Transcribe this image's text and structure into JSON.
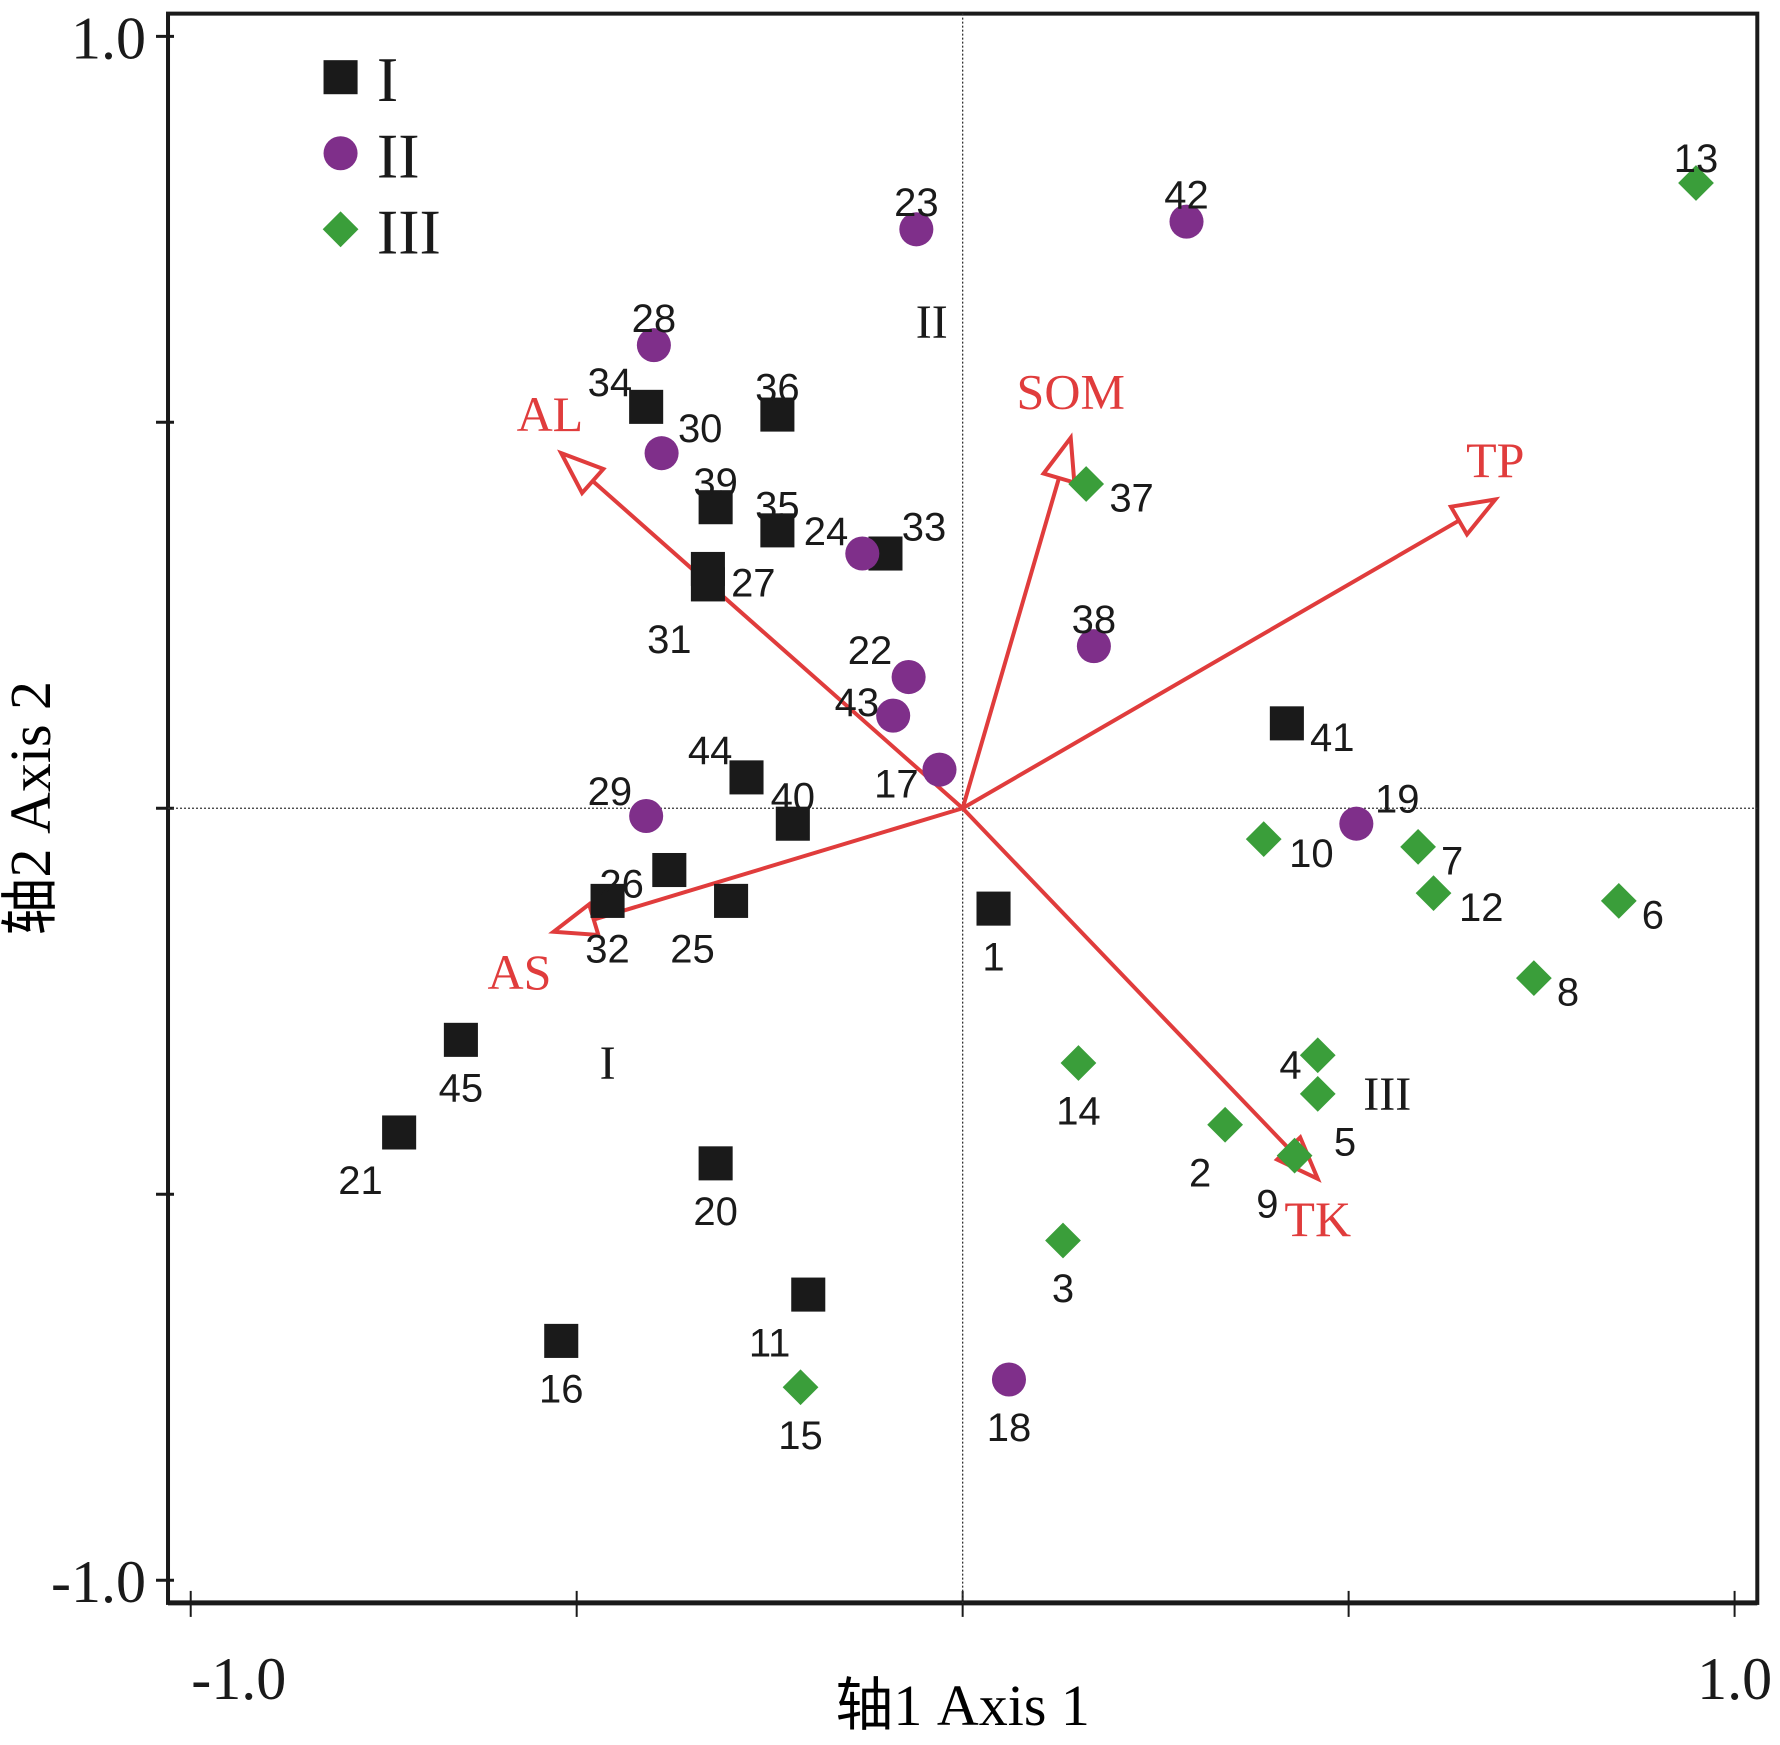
{
  "chart_data": {
    "type": "scatter",
    "title": "",
    "xlabel": "轴1 Axis 1",
    "ylabel": "轴2 Axis 2",
    "xlim": [
      -1.0,
      1.0
    ],
    "ylim": [
      -1.0,
      1.0
    ],
    "x_tick_labels": [
      "-1.0",
      "1.0"
    ],
    "y_tick_labels": [
      "1.0",
      "-1.0"
    ],
    "x_ticks": [
      -1.0,
      -0.5,
      0.0,
      0.5,
      1.0
    ],
    "y_ticks": [
      1.0,
      0.5,
      0.0,
      -0.5,
      -1.0
    ],
    "grid": false,
    "reference_lines": {
      "x": 0,
      "y": 0,
      "style": "dotted"
    },
    "legend": {
      "placement": "top-left",
      "entries": [
        {
          "name": "I",
          "marker": "square",
          "color": "#1a1a1a"
        },
        {
          "name": "II",
          "marker": "circle",
          "color": "#7f2f8a"
        },
        {
          "name": "III",
          "marker": "diamond",
          "color": "#3a9e3a"
        }
      ]
    },
    "series": [
      {
        "name": "I",
        "marker": "square",
        "color": "#1a1a1a",
        "points": [
          {
            "label": "1",
            "x": 0.04,
            "y": -0.13
          },
          {
            "label": "11",
            "x": -0.2,
            "y": -0.63
          },
          {
            "label": "16",
            "x": -0.52,
            "y": -0.69
          },
          {
            "label": "20",
            "x": -0.32,
            "y": -0.46
          },
          {
            "label": "21",
            "x": -0.73,
            "y": -0.42
          },
          {
            "label": "25",
            "x": -0.3,
            "y": -0.12
          },
          {
            "label": "26",
            "x": -0.38,
            "y": -0.08
          },
          {
            "label": "27",
            "x": -0.33,
            "y": 0.31
          },
          {
            "label": "31",
            "x": -0.33,
            "y": 0.29
          },
          {
            "label": "32",
            "x": -0.46,
            "y": -0.12
          },
          {
            "label": "33",
            "x": -0.1,
            "y": 0.33
          },
          {
            "label": "34",
            "x": -0.41,
            "y": 0.52
          },
          {
            "label": "35",
            "x": -0.24,
            "y": 0.36
          },
          {
            "label": "36",
            "x": -0.24,
            "y": 0.51
          },
          {
            "label": "39",
            "x": -0.32,
            "y": 0.39
          },
          {
            "label": "40",
            "x": -0.22,
            "y": -0.02
          },
          {
            "label": "41",
            "x": 0.42,
            "y": 0.11
          },
          {
            "label": "44",
            "x": -0.28,
            "y": 0.04
          },
          {
            "label": "45",
            "x": -0.65,
            "y": -0.3
          }
        ]
      },
      {
        "name": "II",
        "marker": "circle",
        "color": "#7f2f8a",
        "points": [
          {
            "label": "17",
            "x": -0.03,
            "y": 0.05
          },
          {
            "label": "18",
            "x": 0.06,
            "y": -0.74
          },
          {
            "label": "19",
            "x": 0.51,
            "y": -0.02
          },
          {
            "label": "22",
            "x": -0.07,
            "y": 0.17
          },
          {
            "label": "23",
            "x": -0.06,
            "y": 0.75
          },
          {
            "label": "24",
            "x": -0.13,
            "y": 0.33
          },
          {
            "label": "28",
            "x": -0.4,
            "y": 0.6
          },
          {
            "label": "29",
            "x": -0.41,
            "y": -0.01
          },
          {
            "label": "30",
            "x": -0.39,
            "y": 0.46
          },
          {
            "label": "38",
            "x": 0.17,
            "y": 0.21
          },
          {
            "label": "42",
            "x": 0.29,
            "y": 0.76
          },
          {
            "label": "43",
            "x": -0.09,
            "y": 0.12
          }
        ]
      },
      {
        "name": "III",
        "marker": "diamond",
        "color": "#3a9e3a",
        "points": [
          {
            "label": "2",
            "x": 0.34,
            "y": -0.41
          },
          {
            "label": "3",
            "x": 0.13,
            "y": -0.56
          },
          {
            "label": "4",
            "x": 0.46,
            "y": -0.32
          },
          {
            "label": "5",
            "x": 0.46,
            "y": -0.37
          },
          {
            "label": "6",
            "x": 0.85,
            "y": -0.12
          },
          {
            "label": "7",
            "x": 0.59,
            "y": -0.05
          },
          {
            "label": "8",
            "x": 0.74,
            "y": -0.22
          },
          {
            "label": "9",
            "x": 0.43,
            "y": -0.45
          },
          {
            "label": "10",
            "x": 0.39,
            "y": -0.04
          },
          {
            "label": "12",
            "x": 0.61,
            "y": -0.11
          },
          {
            "label": "13",
            "x": 0.95,
            "y": 0.81
          },
          {
            "label": "14",
            "x": 0.15,
            "y": -0.33
          },
          {
            "label": "15",
            "x": -0.21,
            "y": -0.75
          },
          {
            "label": "37",
            "x": 0.16,
            "y": 0.42
          }
        ]
      }
    ],
    "vectors": {
      "color": "#e03c3c",
      "items": [
        {
          "name": "AL",
          "x": -0.52,
          "y": 0.46
        },
        {
          "name": "AS",
          "x": -0.53,
          "y": -0.16
        },
        {
          "name": "SOM",
          "x": 0.14,
          "y": 0.48
        },
        {
          "name": "TP",
          "x": 0.69,
          "y": 0.4
        },
        {
          "name": "TK",
          "x": 0.46,
          "y": -0.48
        }
      ]
    },
    "annotations": [
      {
        "text": "I",
        "x": -0.46,
        "y": -0.33
      },
      {
        "text": "II",
        "x": -0.04,
        "y": 0.63
      },
      {
        "text": "III",
        "x": 0.55,
        "y": -0.37
      }
    ]
  }
}
